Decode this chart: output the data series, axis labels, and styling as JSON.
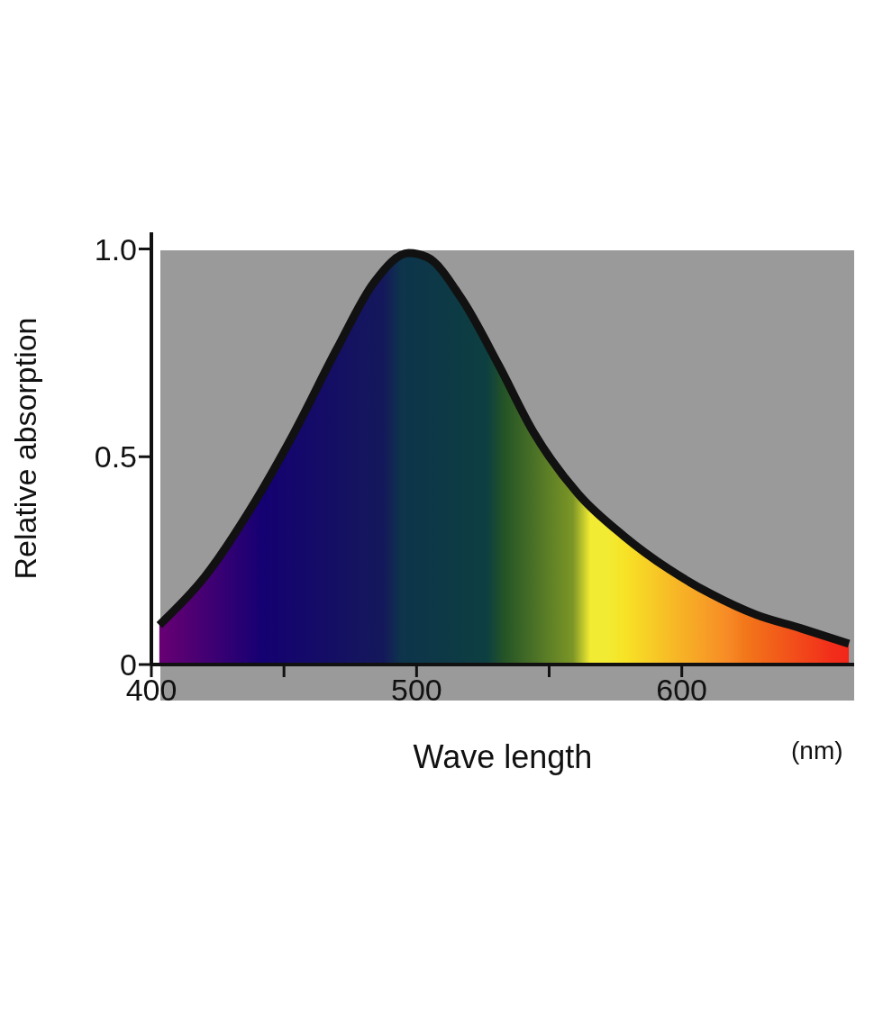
{
  "chart_data": {
    "type": "area",
    "xlabel": "Wave length",
    "ylabel": "Relative absorption",
    "annotations": [
      "(nm)"
    ],
    "x": [
      403,
      420,
      437,
      454,
      470,
      484,
      497,
      504,
      517,
      531,
      544,
      561,
      578,
      595,
      611,
      628,
      645,
      663
    ],
    "values": [
      0.095,
      0.21,
      0.37,
      0.56,
      0.76,
      0.92,
      0.99,
      0.98,
      0.88,
      0.72,
      0.56,
      0.41,
      0.31,
      0.23,
      0.17,
      0.12,
      0.087,
      0.05
    ],
    "color": "#111111",
    "xlim": [
      400,
      665
    ],
    "xticks": [
      400,
      {
        "value": 450,
        "label": null
      },
      500,
      {
        "value": 550,
        "label": null
      },
      600
    ],
    "ylim": [
      0,
      1.04
    ],
    "yticks": [
      0,
      0.5,
      {
        "value": 1,
        "label": "1.0"
      }
    ]
  }
}
